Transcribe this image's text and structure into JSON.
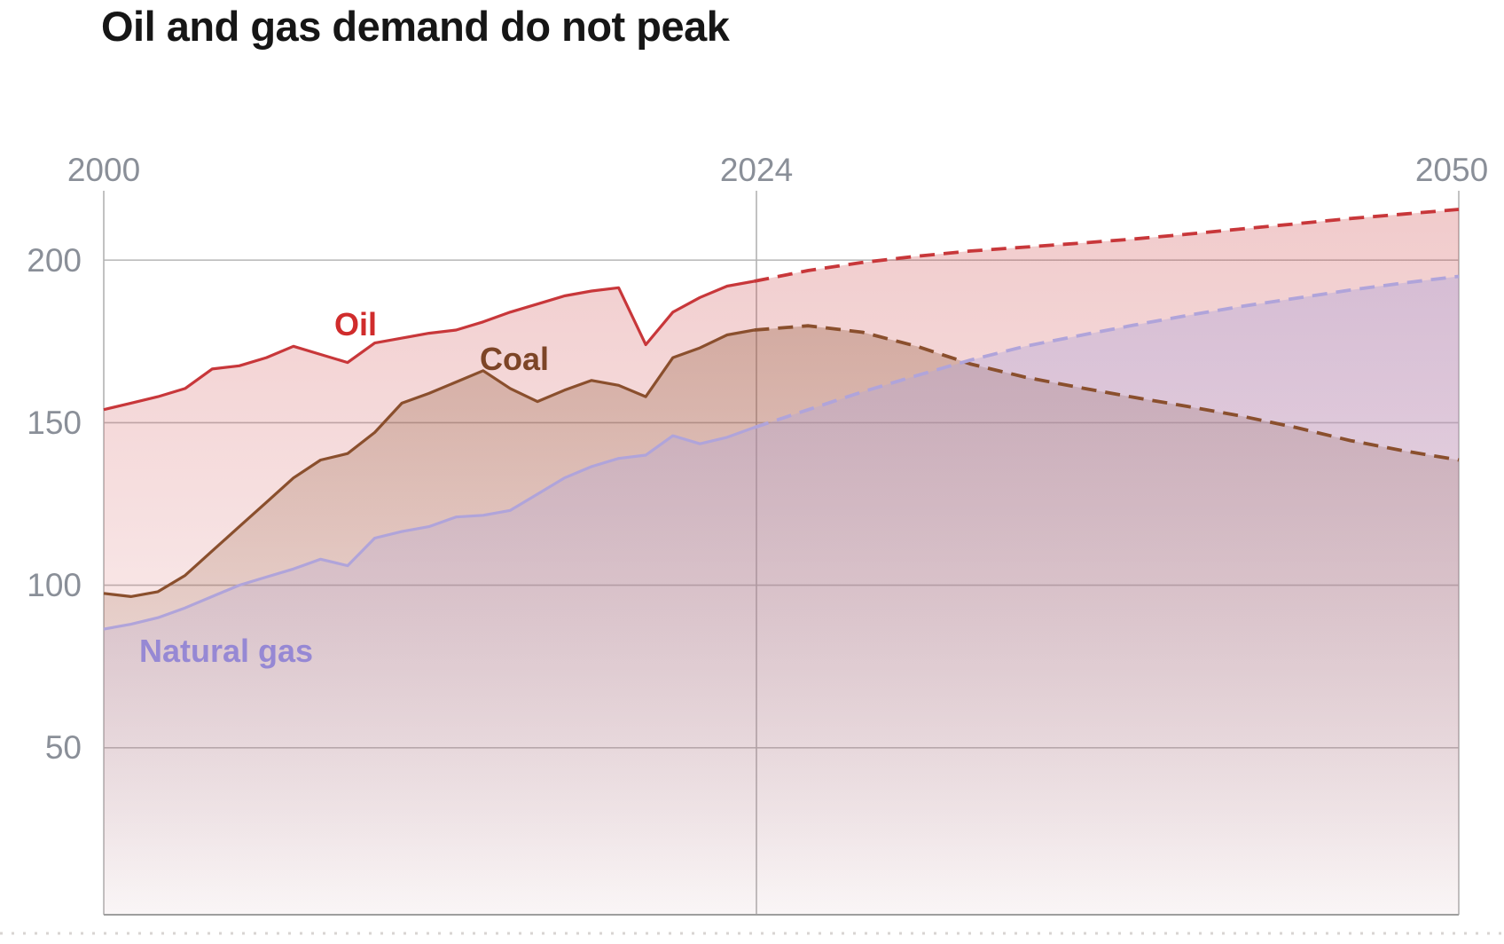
{
  "title": "Oil and gas demand do not peak",
  "chart_data": {
    "type": "area",
    "title": "Oil and gas demand do not peak",
    "x_tick_labels": [
      "2000",
      "2024",
      "2050"
    ],
    "y_tick_labels": [
      "200",
      "150",
      "100",
      "50"
    ],
    "x_range": [
      2000,
      2050
    ],
    "y_ticks": [
      200,
      150,
      100,
      50
    ],
    "grid": true,
    "history_end": 2024,
    "projection_style": "dashed",
    "history_years": [
      2000,
      2001,
      2002,
      2003,
      2004,
      2005,
      2006,
      2007,
      2008,
      2009,
      2010,
      2011,
      2012,
      2013,
      2014,
      2015,
      2016,
      2017,
      2018,
      2019,
      2020,
      2021,
      2022,
      2023,
      2024
    ],
    "projection_years": [
      2024,
      2026,
      2028,
      2030,
      2032,
      2034,
      2036,
      2038,
      2040,
      2042,
      2044,
      2046,
      2048,
      2050
    ],
    "series": [
      {
        "name": "oil",
        "label": "Oil",
        "line_color": "#c8373a",
        "label_color": "#d02c2c",
        "history": [
          154,
          156,
          158,
          160.5,
          166.5,
          167.5,
          170,
          173.5,
          171,
          168.5,
          174.5,
          176,
          177.5,
          178.5,
          181,
          184,
          186.5,
          189,
          190.5,
          191.5,
          174,
          184,
          188.5,
          192,
          193.5
        ],
        "projection": [
          193.5,
          196.8,
          199.3,
          201.2,
          202.8,
          204,
          205.2,
          206.5,
          208,
          209.6,
          211.2,
          212.8,
          214.2,
          215.6
        ]
      },
      {
        "name": "coal",
        "label": "Coal",
        "line_color": "#8a4f2d",
        "label_color": "#7d4527",
        "history": [
          97.5,
          96.5,
          98,
          103,
          110.5,
          118,
          125.5,
          133,
          138.5,
          140.5,
          147,
          156,
          159,
          162.5,
          166,
          160.5,
          156.5,
          160,
          163,
          161.5,
          158,
          170,
          173,
          177,
          178.5
        ],
        "projection": [
          178.5,
          179.8,
          177.8,
          173.5,
          168,
          164,
          160.8,
          157.8,
          155,
          152,
          148.5,
          144.5,
          141.3,
          138.5
        ]
      },
      {
        "name": "natural_gas",
        "label": "Natural gas",
        "line_color": "#b0a4da",
        "label_color": "#9688d4",
        "history": [
          86.5,
          88,
          90,
          93,
          96.5,
          100,
          102.5,
          105,
          108,
          106,
          114.5,
          116.5,
          118,
          121,
          121.5,
          123,
          128,
          133,
          136.5,
          139,
          140,
          146,
          143.5,
          145.5,
          148.5
        ],
        "projection": [
          148.5,
          154,
          159.5,
          164.5,
          169.3,
          173.5,
          176.8,
          180,
          183,
          185.8,
          188.3,
          190.8,
          193,
          195
        ]
      }
    ]
  }
}
